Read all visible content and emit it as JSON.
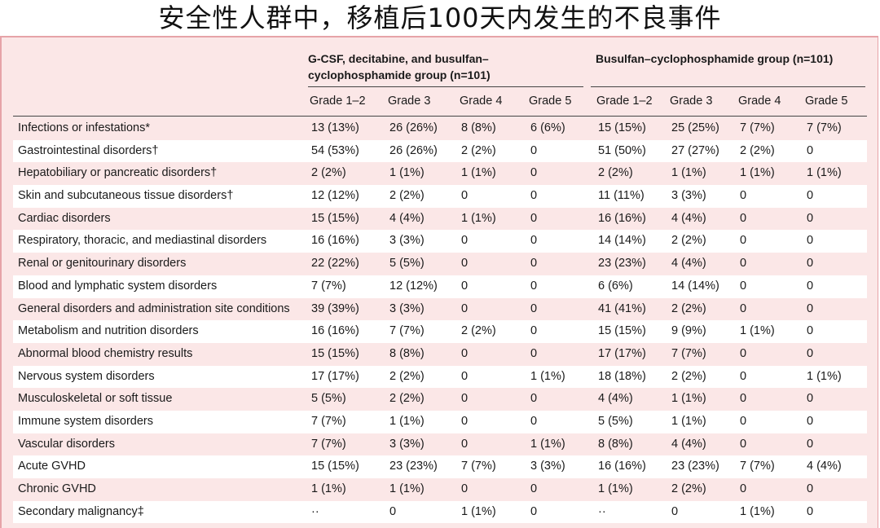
{
  "title": "安全性人群中，移植后100天内发生的不良事件",
  "groups": [
    {
      "name_line1": "G-CSF, decitabine, and busulfan–",
      "name_line2": "cyclophosphamide group (n=101)"
    },
    {
      "name_line1": "Busulfan–cyclophosphamide group (n=101)",
      "name_line2": ""
    }
  ],
  "grades": [
    "Grade 1–2",
    "Grade 3",
    "Grade 4",
    "Grade 5"
  ],
  "rows": [
    {
      "label": "Infections or infestations*",
      "a": [
        "13 (13%)",
        "26 (26%)",
        "8 (8%)",
        "6 (6%)"
      ],
      "b": [
        "15 (15%)",
        "25 (25%)",
        "7 (7%)",
        "7 (7%)"
      ]
    },
    {
      "label": "Gastrointestinal disorders†",
      "a": [
        "54 (53%)",
        "26 (26%)",
        "2 (2%)",
        "0"
      ],
      "b": [
        "51 (50%)",
        "27 (27%)",
        "2 (2%)",
        "0"
      ]
    },
    {
      "label": "Hepatobiliary or pancreatic disorders†",
      "a": [
        "2 (2%)",
        "1 (1%)",
        "1 (1%)",
        "0"
      ],
      "b": [
        "2 (2%)",
        "1 (1%)",
        "1 (1%)",
        "1 (1%)"
      ]
    },
    {
      "label": "Skin and subcutaneous tissue disorders†",
      "a": [
        "12 (12%)",
        "2 (2%)",
        "0",
        "0"
      ],
      "b": [
        "11 (11%)",
        "3 (3%)",
        "0",
        "0"
      ]
    },
    {
      "label": "Cardiac disorders",
      "a": [
        "15 (15%)",
        "4 (4%)",
        "1 (1%)",
        "0"
      ],
      "b": [
        "16 (16%)",
        "4 (4%)",
        "0",
        "0"
      ]
    },
    {
      "label": "Respiratory, thoracic, and mediastinal disorders",
      "a": [
        "16 (16%)",
        "3 (3%)",
        "0",
        "0"
      ],
      "b": [
        "14 (14%)",
        "2 (2%)",
        "0",
        "0"
      ]
    },
    {
      "label": "Renal or genitourinary disorders",
      "a": [
        "22 (22%)",
        "5 (5%)",
        "0",
        "0"
      ],
      "b": [
        "23 (23%)",
        "4 (4%)",
        "0",
        "0"
      ]
    },
    {
      "label": "Blood and lymphatic system disorders",
      "a": [
        "7 (7%)",
        "12 (12%)",
        "0",
        "0"
      ],
      "b": [
        "6 (6%)",
        "14 (14%)",
        "0",
        "0"
      ]
    },
    {
      "label": "General disorders and administration site conditions",
      "a": [
        "39 (39%)",
        "3 (3%)",
        "0",
        "0"
      ],
      "b": [
        "41 (41%)",
        "2 (2%)",
        "0",
        "0"
      ]
    },
    {
      "label": "Metabolism and nutrition disorders",
      "a": [
        "16 (16%)",
        "7 (7%)",
        "2 (2%)",
        "0"
      ],
      "b": [
        "15 (15%)",
        "9 (9%)",
        "1 (1%)",
        "0"
      ]
    },
    {
      "label": "Abnormal blood chemistry results",
      "a": [
        "15 (15%)",
        "8 (8%)",
        "0",
        "0"
      ],
      "b": [
        "17 (17%)",
        "7 (7%)",
        "0",
        "0"
      ]
    },
    {
      "label": "Nervous system disorders",
      "a": [
        "17 (17%)",
        "2 (2%)",
        "0",
        "1 (1%)"
      ],
      "b": [
        "18 (18%)",
        "2 (2%)",
        "0",
        "1 (1%)"
      ]
    },
    {
      "label": "Musculoskeletal or soft tissue",
      "a": [
        "5 (5%)",
        "2 (2%)",
        "0",
        "0"
      ],
      "b": [
        "4 (4%)",
        "1 (1%)",
        "0",
        "0"
      ]
    },
    {
      "label": "Immune system disorders",
      "a": [
        "7 (7%)",
        "1 (1%)",
        "0",
        "0"
      ],
      "b": [
        "5 (5%)",
        "1 (1%)",
        "0",
        "0"
      ]
    },
    {
      "label": "Vascular disorders",
      "a": [
        "7 (7%)",
        "3 (3%)",
        "0",
        "1 (1%)"
      ],
      "b": [
        "8 (8%)",
        "4 (4%)",
        "0",
        "0"
      ]
    },
    {
      "label": "Acute GVHD",
      "a": [
        "15 (15%)",
        "23 (23%)",
        "7 (7%)",
        "3 (3%)"
      ],
      "b": [
        "16 (16%)",
        "23 (23%)",
        "7 (7%)",
        "4 (4%)"
      ]
    },
    {
      "label": "Chronic GVHD",
      "a": [
        "1 (1%)",
        "1 (1%)",
        "0",
        "0"
      ],
      "b": [
        "1 (1%)",
        "2 (2%)",
        "0",
        "0"
      ]
    },
    {
      "label": "Secondary malignancy‡",
      "a": [
        "··",
        "0",
        "1 (1%)",
        "0"
      ],
      "b": [
        "··",
        "0",
        "1 (1%)",
        "0"
      ]
    }
  ]
}
